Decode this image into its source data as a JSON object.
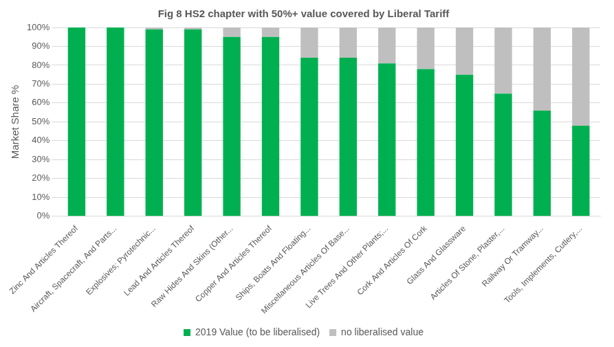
{
  "chart_data": {
    "type": "bar",
    "title": "Fig 8 HS2 chapter with 50%+ value covered by Liberal Tariff",
    "y_label": "Market Share %",
    "categories": [
      "Zinc And Articles Thereof",
      "Aircraft, Spacecraft, And Parts...",
      "Explosives; Pyrotechnic...",
      "Lead And Articles Thereof",
      "Raw Hides And Skins (Other...",
      "Copper And Articles Thereof",
      "Ships, Boats And Floating...",
      "Miscellaneous Articles Of Base...",
      "Live Trees And Other Plants;...",
      "Cork And Articles Of Cork",
      "Glass And Glassware",
      "Articles Of Stone, Plaster,...",
      "Railway Or Tramway...",
      "Tools, Implements, Cutlery,..."
    ],
    "series": [
      {
        "name": "2019 Value (to be liberalised)",
        "color": "#00b050",
        "values": [
          100,
          100,
          99,
          99,
          95,
          95,
          84,
          84,
          81,
          78,
          75,
          65,
          56,
          48
        ]
      },
      {
        "name": "no liberalised value",
        "color": "#bfbfbf",
        "values": [
          0,
          0,
          1,
          1,
          5,
          5,
          16,
          16,
          19,
          22,
          25,
          35,
          44,
          52
        ]
      }
    ],
    "stacked": true,
    "ylim": [
      0,
      100
    ],
    "yticks": [
      {
        "value": 0,
        "label": "0%"
      },
      {
        "value": 10,
        "label": "10%"
      },
      {
        "value": 20,
        "label": "20%"
      },
      {
        "value": 30,
        "label": "30%"
      },
      {
        "value": 40,
        "label": "40%"
      },
      {
        "value": 50,
        "label": "50%"
      },
      {
        "value": 60,
        "label": "60%"
      },
      {
        "value": 70,
        "label": "70%"
      },
      {
        "value": 80,
        "label": "80%"
      },
      {
        "value": 90,
        "label": "90%"
      },
      {
        "value": 100,
        "label": "100%"
      }
    ],
    "grid": true,
    "legend": "bottom"
  }
}
